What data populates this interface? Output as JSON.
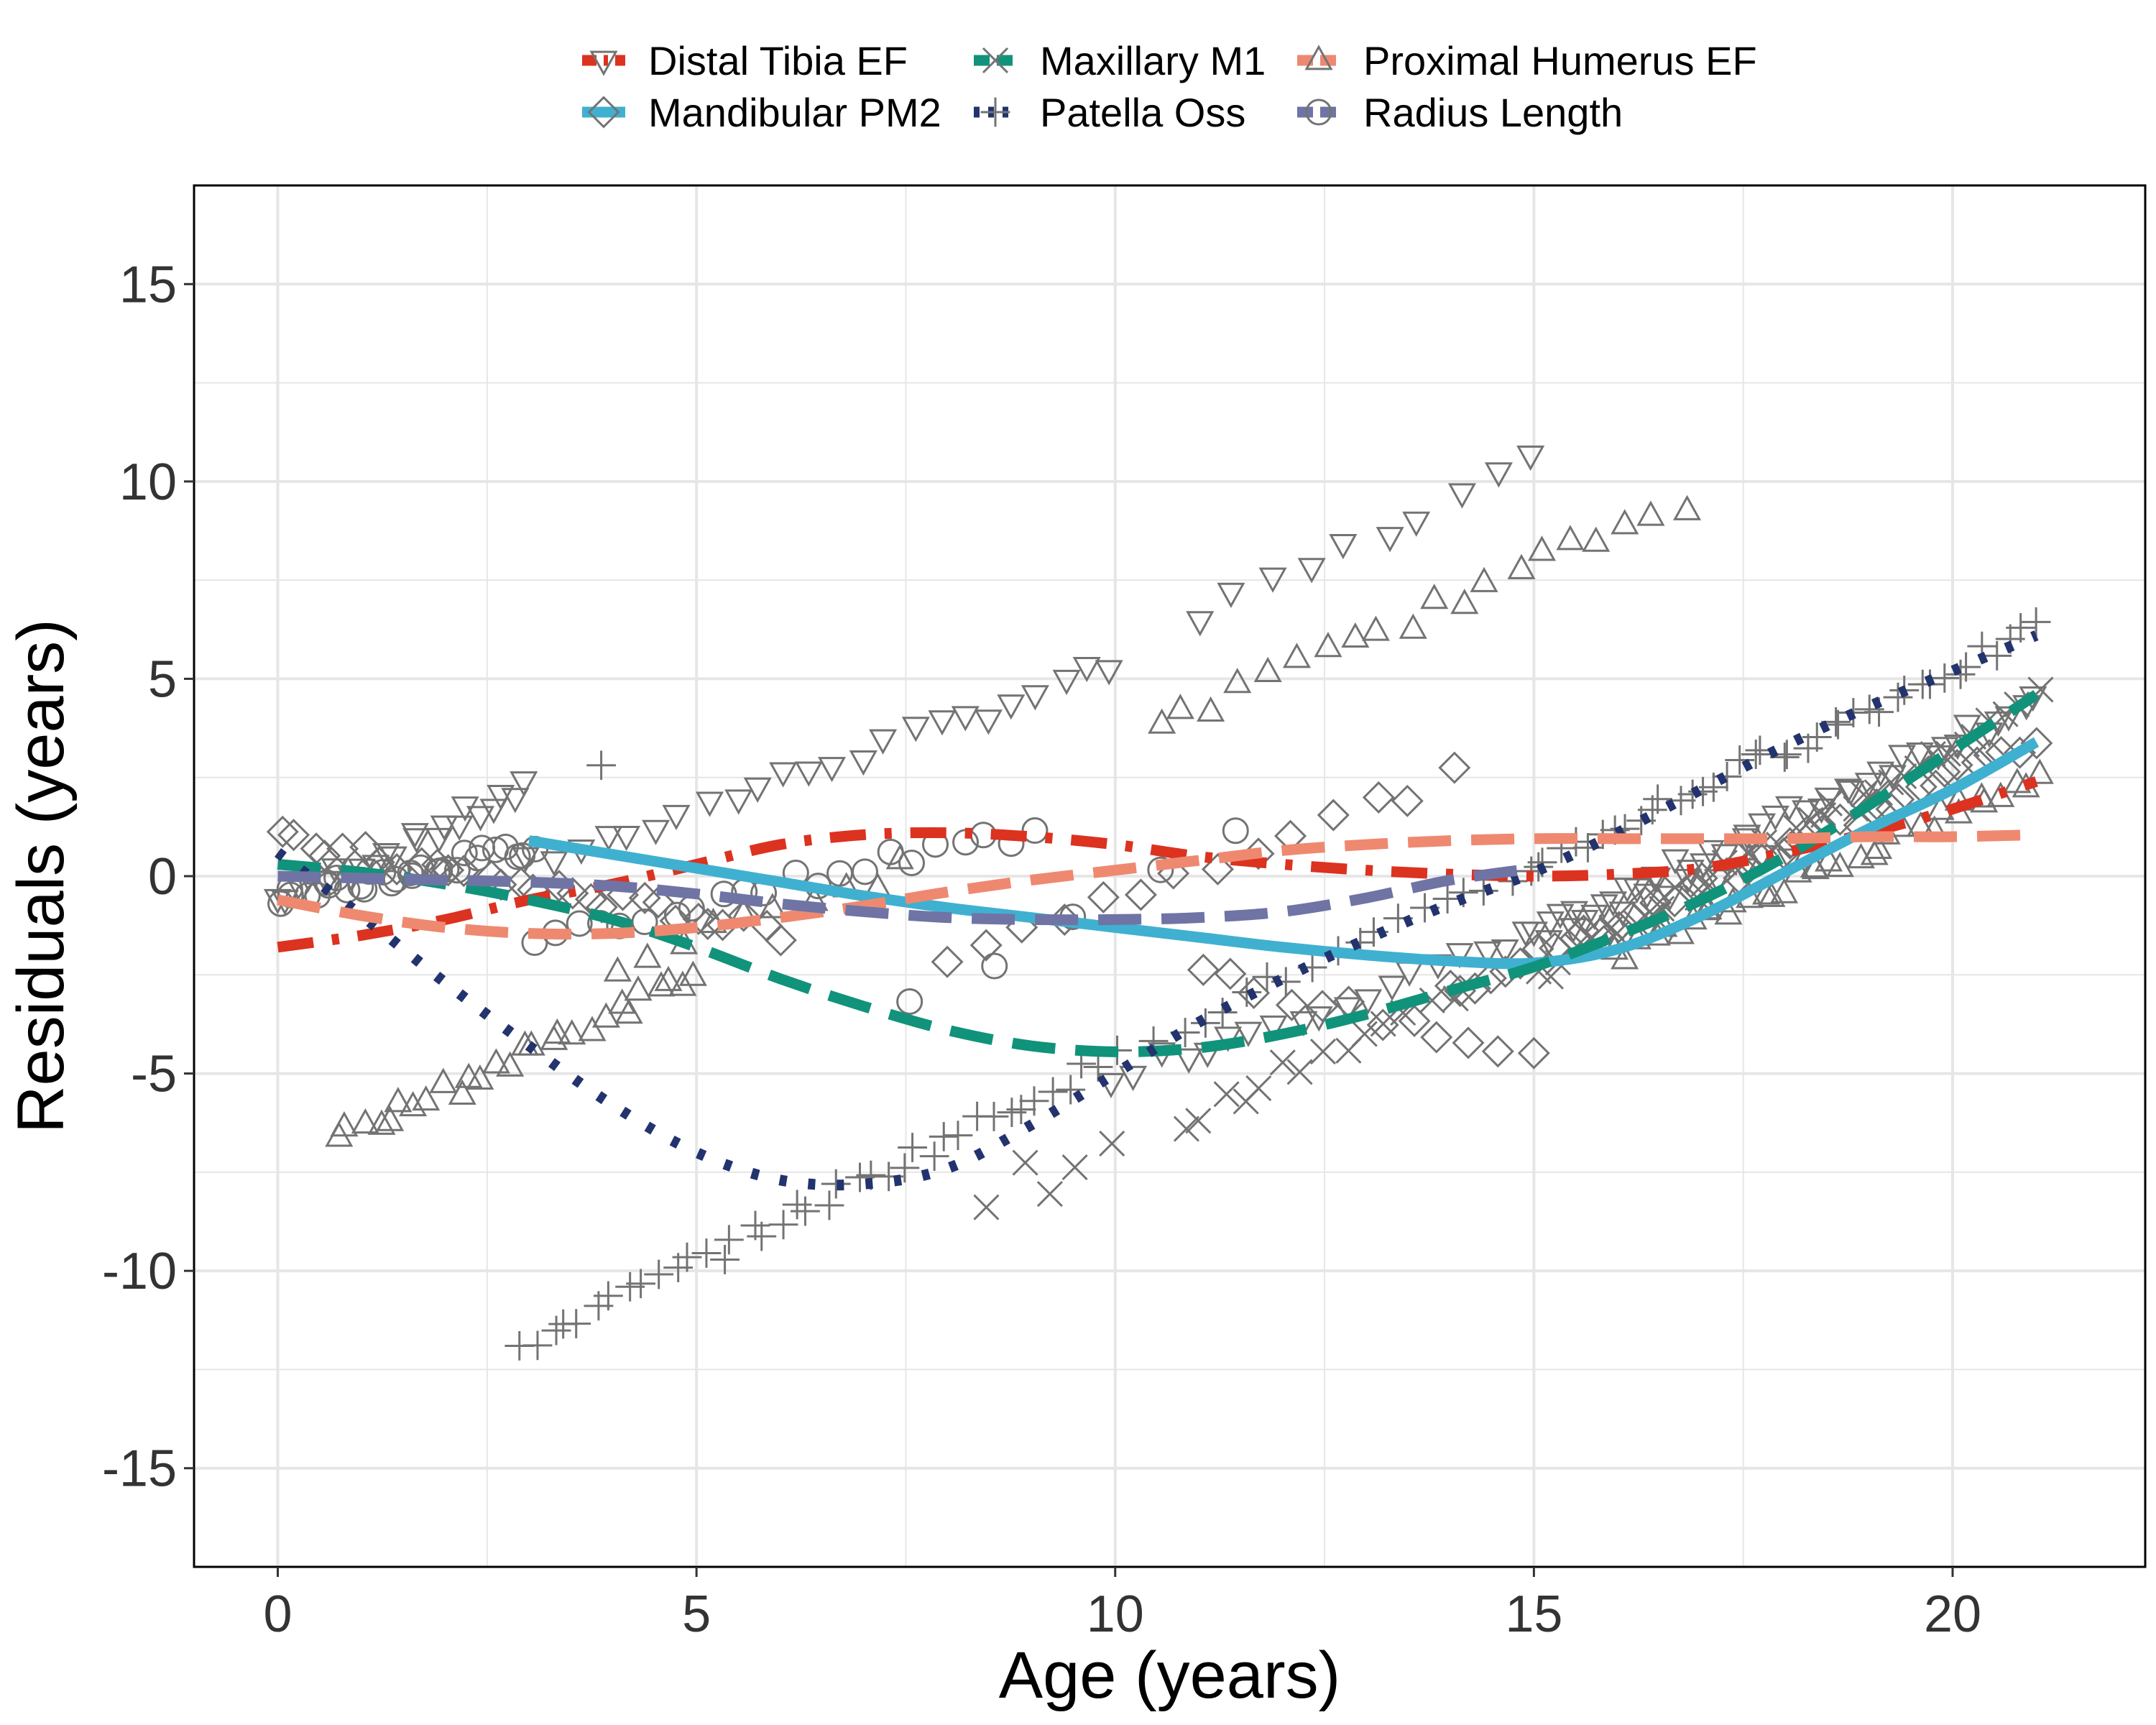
{
  "chart_data": {
    "type": "scatter",
    "xlabel": "Age (years)",
    "ylabel": "Residuals (years)",
    "xlim": [
      -1.0,
      22.3
    ],
    "ylim": [
      -17.5,
      17.5
    ],
    "x_ticks": [
      0,
      5,
      10,
      15,
      20
    ],
    "x_tick_labels": [
      "0",
      "5",
      "10",
      "15",
      "20"
    ],
    "y_ticks": [
      -15,
      -10,
      -5,
      0,
      5,
      10,
      15
    ],
    "y_tick_labels": [
      "-15",
      "-10",
      "-5",
      "0",
      "5",
      "10",
      "15"
    ],
    "grid": true,
    "legend_position": "top",
    "point_color": "#737373",
    "series": [
      {
        "name": "Distal Tibia EF",
        "color": "#DC3220",
        "dash": "longdash-dot",
        "marker": "triangle-down",
        "smooth": {
          "x": [
            0,
            1,
            2,
            3,
            4,
            5,
            6,
            7,
            8,
            9,
            10,
            11,
            12,
            13,
            14,
            15,
            16,
            17,
            18,
            19,
            20,
            21
          ],
          "y": [
            -1.8,
            -1.5,
            -1.1,
            -0.6,
            -0.2,
            0.3,
            0.8,
            1.05,
            1.1,
            1.0,
            0.8,
            0.5,
            0.3,
            0.15,
            0.05,
            0.0,
            0.05,
            0.2,
            0.6,
            1.1,
            1.7,
            2.4
          ]
        },
        "points": [
          {
            "x0": 0,
            "x1": 3,
            "y0": -0.6,
            "y1": 2.2,
            "n": 22
          },
          {
            "x0": 3,
            "x1": 10,
            "y0": 0.3,
            "y1": 5.3,
            "n": 24
          },
          {
            "x0": 11,
            "x1": 15,
            "y0": 6.5,
            "y1": 10.5,
            "n": 10
          },
          {
            "x0": 10,
            "x1": 18,
            "y0": -5.0,
            "y1": 0.5,
            "n": 30
          },
          {
            "x0": 15,
            "x1": 21,
            "y0": -1.5,
            "y1": 4.5,
            "n": 40
          }
        ]
      },
      {
        "name": "Mandibular PM2",
        "color": "#40B0D0",
        "dash": "solid",
        "marker": "diamond",
        "smooth": {
          "x": [
            3,
            4,
            5,
            6,
            7,
            8,
            9,
            10,
            11,
            12,
            13,
            14,
            15,
            16,
            17,
            18,
            19,
            20,
            21
          ],
          "y": [
            0.9,
            0.55,
            0.2,
            -0.15,
            -0.5,
            -0.8,
            -1.05,
            -1.3,
            -1.55,
            -1.8,
            -2.0,
            -2.15,
            -2.2,
            -1.85,
            -1.0,
            0.1,
            1.2,
            2.2,
            3.4
          ]
        },
        "points": [
          {
            "x0": 0,
            "x1": 6,
            "y0": 0.9,
            "y1": -1.4,
            "n": 30
          },
          {
            "x0": 8,
            "x1": 14,
            "y0": -2.0,
            "y1": 2.5,
            "n": 14
          },
          {
            "x0": 11,
            "x1": 15,
            "y0": -2.5,
            "y1": -4.5,
            "n": 12
          },
          {
            "x0": 14,
            "x1": 21,
            "y0": -3.0,
            "y1": 3.5,
            "n": 40
          }
        ]
      },
      {
        "name": "Maxillary M1",
        "color": "#10937A",
        "dash": "longdash",
        "marker": "x",
        "smooth": {
          "x": [
            0,
            1,
            2,
            3,
            4,
            5,
            6,
            7,
            8,
            9,
            10,
            11,
            12,
            13,
            14,
            15,
            16,
            17,
            18,
            19,
            20,
            21
          ],
          "y": [
            0.3,
            0.1,
            -0.2,
            -0.6,
            -1.1,
            -1.8,
            -2.6,
            -3.3,
            -3.9,
            -4.3,
            -4.45,
            -4.35,
            -4.0,
            -3.5,
            -2.9,
            -2.3,
            -1.5,
            -0.6,
            0.5,
            1.8,
            3.2,
            4.6
          ]
        },
        "points": [
          {
            "x0": 9,
            "x1": 10,
            "y0": -7.5,
            "y1": -7.0,
            "n": 3
          },
          {
            "x0": 8.5,
            "x1": 9.2,
            "y0": -8.5,
            "y1": -8.0,
            "n": 2
          },
          {
            "x0": 10.8,
            "x1": 14,
            "y0": -6.2,
            "y1": -3.0,
            "n": 14
          },
          {
            "x0": 15,
            "x1": 21,
            "y0": -2.5,
            "y1": 4.5,
            "n": 36
          }
        ]
      },
      {
        "name": "Patella Oss",
        "color": "#23336E",
        "dash": "dotted",
        "marker": "plus",
        "smooth": {
          "x": [
            0,
            1,
            2,
            3,
            4,
            5,
            6,
            7,
            8,
            9,
            10,
            11,
            12,
            13,
            14,
            15,
            16,
            17,
            18,
            19,
            20,
            21
          ],
          "y": [
            0.6,
            -1.0,
            -2.7,
            -4.3,
            -5.8,
            -7.0,
            -7.7,
            -7.8,
            -7.4,
            -6.3,
            -5.0,
            -3.7,
            -2.6,
            -1.6,
            -0.7,
            0.1,
            1.1,
            2.2,
            3.3,
            4.3,
            5.2,
            6.1
          ]
        },
        "points": [
          {
            "x0": 2.9,
            "x1": 10,
            "y0": -11.9,
            "y1": -4.6,
            "n": 40
          },
          {
            "x0": 10.5,
            "x1": 15,
            "y0": -4.0,
            "y1": 0.2,
            "n": 18
          },
          {
            "x0": 15,
            "x1": 21,
            "y0": 0.3,
            "y1": 6.2,
            "n": 40
          },
          {
            "x0": 3.8,
            "x1": 3.8,
            "y0": 3.0,
            "y1": 3.0,
            "n": 1
          }
        ]
      },
      {
        "name": "Proximal Humerus EF",
        "color": "#EE8970",
        "dash": "longdash",
        "marker": "triangle-up",
        "smooth": {
          "x": [
            0,
            1,
            2,
            3,
            4,
            5,
            6,
            7,
            8,
            9,
            10,
            11,
            12,
            13,
            14,
            15,
            16,
            17,
            18,
            19,
            20,
            21
          ],
          "y": [
            -0.6,
            -1.0,
            -1.3,
            -1.45,
            -1.45,
            -1.3,
            -1.05,
            -0.75,
            -0.4,
            -0.1,
            0.15,
            0.4,
            0.65,
            0.8,
            0.9,
            0.95,
            0.95,
            0.95,
            0.95,
            1.0,
            1.0,
            1.05
          ]
        },
        "points": [
          {
            "x0": 0.7,
            "x1": 5,
            "y0": -6.7,
            "y1": -2.5,
            "n": 28
          },
          {
            "x0": 10.5,
            "x1": 16.8,
            "y0": 3.8,
            "y1": 9.5,
            "n": 20
          },
          {
            "x0": 4,
            "x1": 7.5,
            "y0": -2.2,
            "y1": 0.2,
            "n": 10
          },
          {
            "x0": 16,
            "x1": 21,
            "y0": -2.0,
            "y1": 2.5,
            "n": 36
          }
        ]
      },
      {
        "name": "Radius Length",
        "color": "#6F74A5",
        "dash": "longdash",
        "marker": "circle",
        "smooth": {
          "x": [
            0,
            1,
            2,
            3,
            4,
            5,
            6,
            7,
            8,
            9,
            10,
            11,
            12,
            13,
            14,
            15
          ],
          "y": [
            0.0,
            -0.05,
            -0.1,
            -0.15,
            -0.25,
            -0.45,
            -0.7,
            -0.9,
            -1.05,
            -1.1,
            -1.1,
            -1.05,
            -0.9,
            -0.55,
            -0.1,
            0.2
          ]
        },
        "points": [
          {
            "x0": 0,
            "x1": 3,
            "y0": -0.5,
            "y1": 0.7,
            "n": 30
          },
          {
            "x0": 3,
            "x1": 9,
            "y0": -1.6,
            "y1": 1.2,
            "n": 22
          },
          {
            "x0": 7.5,
            "x1": 11.5,
            "y0": -3.2,
            "y1": 1.0,
            "n": 5
          }
        ]
      }
    ]
  }
}
